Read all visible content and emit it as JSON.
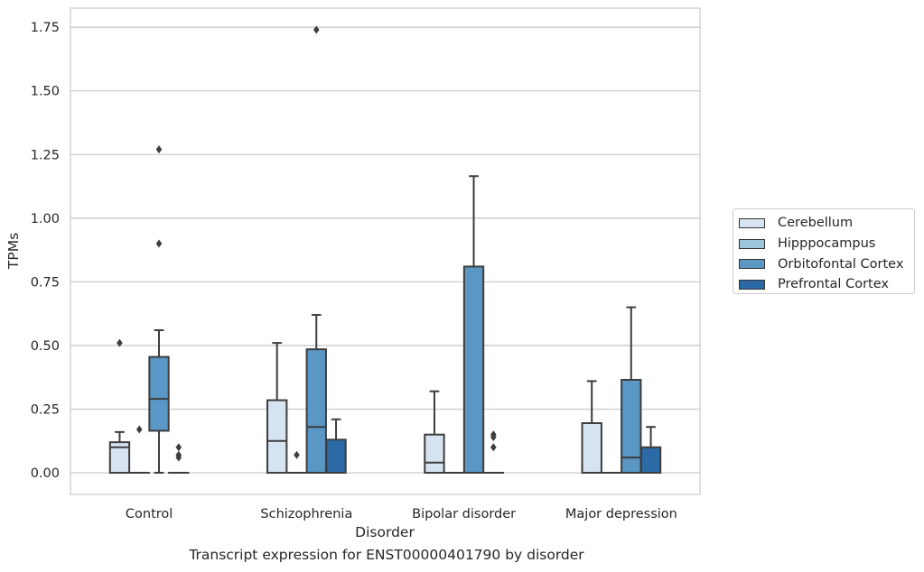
{
  "chart_data": {
    "type": "box",
    "xlabel": "Disorder",
    "ylabel": "TPMs",
    "caption": "Transcript expression for ENST00000401790 by disorder",
    "categories": [
      "Control",
      "Schizophrenia",
      "Bipolar disorder",
      "Major depression"
    ],
    "ylim": [
      -0.085,
      1.825
    ],
    "yticks": [
      0.0,
      0.25,
      0.5,
      0.75,
      1.0,
      1.25,
      1.5,
      1.75
    ],
    "ytick_labels": [
      "0.00",
      "0.25",
      "0.50",
      "0.75",
      "1.00",
      "1.25",
      "1.50",
      "1.75"
    ],
    "grid": "horizontal",
    "legend_position": "right",
    "series": [
      {
        "name": "Cerebellum",
        "color": "#d6e4f1",
        "boxes": [
          {
            "q1": 0.0,
            "median": 0.1,
            "q3": 0.12,
            "whislo": 0.0,
            "whishi": 0.16,
            "fliers": [
              0.51
            ]
          },
          {
            "q1": 0.0,
            "median": 0.125,
            "q3": 0.285,
            "whislo": 0.0,
            "whishi": 0.51,
            "fliers": []
          },
          {
            "q1": 0.0,
            "median": 0.04,
            "q3": 0.15,
            "whislo": 0.0,
            "whishi": 0.32,
            "fliers": []
          },
          {
            "q1": 0.0,
            "median": 0.0,
            "q3": 0.195,
            "whislo": 0.0,
            "whishi": 0.36,
            "fliers": []
          }
        ]
      },
      {
        "name": "Hipppocampus",
        "color": "#9cc5de",
        "boxes": [
          {
            "q1": 0.0,
            "median": 0.0,
            "q3": 0.0,
            "whislo": 0.0,
            "whishi": 0.0,
            "fliers": [
              0.17
            ]
          },
          {
            "q1": 0.0,
            "median": 0.0,
            "q3": 0.0,
            "whislo": 0.0,
            "whishi": 0.0,
            "fliers": [
              0.07
            ]
          },
          {
            "q1": 0.0,
            "median": 0.0,
            "q3": 0.0,
            "whislo": 0.0,
            "whishi": 0.0,
            "fliers": []
          },
          {
            "q1": 0.0,
            "median": 0.0,
            "q3": 0.0,
            "whislo": 0.0,
            "whishi": 0.0,
            "fliers": []
          }
        ]
      },
      {
        "name": "Orbitofontal Cortex",
        "color": "#5b97c4",
        "boxes": [
          {
            "q1": 0.165,
            "median": 0.29,
            "q3": 0.455,
            "whislo": 0.0,
            "whishi": 0.56,
            "fliers": [
              1.27,
              0.9
            ]
          },
          {
            "q1": 0.0,
            "median": 0.18,
            "q3": 0.485,
            "whislo": 0.0,
            "whishi": 0.62,
            "fliers": [
              1.74
            ]
          },
          {
            "q1": 0.0,
            "median": 0.0,
            "q3": 0.81,
            "whislo": 0.0,
            "whishi": 1.165,
            "fliers": []
          },
          {
            "q1": 0.0,
            "median": 0.06,
            "q3": 0.365,
            "whislo": 0.0,
            "whishi": 0.65,
            "fliers": []
          }
        ]
      },
      {
        "name": "Prefrontal Cortex",
        "color": "#2c6aa6",
        "boxes": [
          {
            "q1": 0.0,
            "median": 0.0,
            "q3": 0.0,
            "whislo": 0.0,
            "whishi": 0.0,
            "fliers": [
              0.1,
              0.07,
              0.06
            ]
          },
          {
            "q1": 0.0,
            "median": 0.0,
            "q3": 0.13,
            "whislo": 0.0,
            "whishi": 0.21,
            "fliers": []
          },
          {
            "q1": 0.0,
            "median": 0.0,
            "q3": 0.0,
            "whislo": 0.0,
            "whishi": 0.0,
            "fliers": [
              0.15,
              0.14,
              0.1
            ]
          },
          {
            "q1": 0.0,
            "median": 0.0,
            "q3": 0.1,
            "whislo": 0.0,
            "whishi": 0.18,
            "fliers": []
          }
        ]
      }
    ]
  }
}
